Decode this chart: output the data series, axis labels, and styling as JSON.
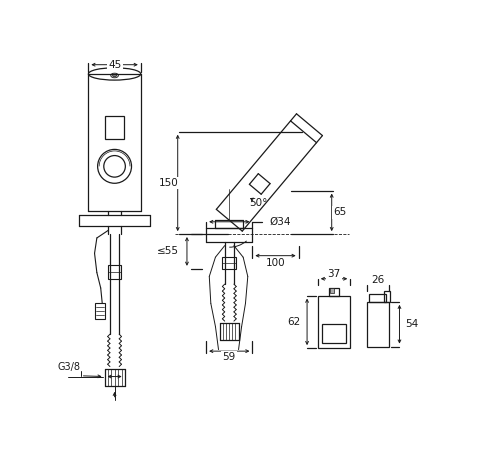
{
  "bg_color": "#ffffff",
  "line_color": "#1a1a1a",
  "fig_width": 5.0,
  "fig_height": 4.75,
  "dims": {
    "d45": "45",
    "d150": "150",
    "d50": "50°",
    "d65": "65",
    "d34": "Ø34",
    "d100": "100",
    "d55": "≤55",
    "d59": "59",
    "g38": "G3/8",
    "d37": "37",
    "d62": "62",
    "d26": "26",
    "d54": "54"
  }
}
